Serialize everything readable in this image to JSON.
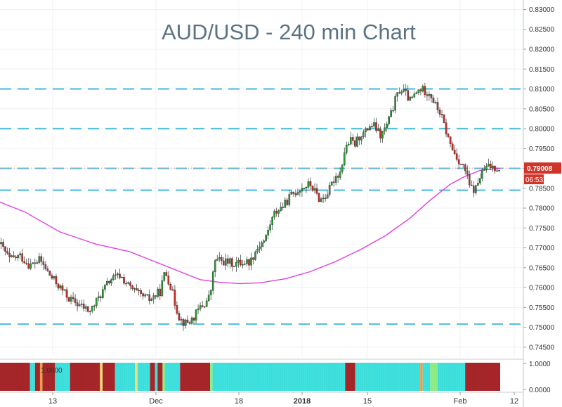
{
  "chart_data": {
    "type": "candlestick",
    "title": "AUD/USD - 240 min Chart",
    "symbol": "AUD/USD",
    "timeframe": "240 min",
    "ylim": [
      0.7425,
      0.8315
    ],
    "y_ticks": [
      "0.83000",
      "0.82500",
      "0.82000",
      "0.81500",
      "0.81000",
      "0.80500",
      "0.80000",
      "0.79500",
      "0.79000",
      "0.78500",
      "0.78000",
      "0.77500",
      "0.77000",
      "0.76500",
      "0.76000",
      "0.75500",
      "0.75000",
      "0.74500"
    ],
    "x_tick_labels": [
      {
        "label": "13",
        "bold": false
      },
      {
        "label": "Dec",
        "bold": false
      },
      {
        "label": "18",
        "bold": false
      },
      {
        "label": "2018",
        "bold": true
      },
      {
        "label": "15",
        "bold": false
      },
      {
        "label": "Feb",
        "bold": false
      },
      {
        "label": "12",
        "bold": false
      }
    ],
    "horizontal_levels": [
      0.81,
      0.8,
      0.79,
      0.7845,
      0.7508
    ],
    "current_price": {
      "value": 0.79008,
      "label": "0.79008",
      "countdown": "06:53"
    },
    "price_path": [
      [
        0,
        0.771
      ],
      [
        0.02,
        0.767
      ],
      [
        0.04,
        0.768
      ],
      [
        0.06,
        0.7655
      ],
      [
        0.08,
        0.767
      ],
      [
        0.1,
        0.763
      ],
      [
        0.12,
        0.76
      ],
      [
        0.14,
        0.757
      ],
      [
        0.16,
        0.7555
      ],
      [
        0.18,
        0.754
      ],
      [
        0.2,
        0.758
      ],
      [
        0.22,
        0.762
      ],
      [
        0.24,
        0.763
      ],
      [
        0.26,
        0.76
      ],
      [
        0.28,
        0.758
      ],
      [
        0.3,
        0.757
      ],
      [
        0.32,
        0.759
      ],
      [
        0.33,
        0.764
      ],
      [
        0.34,
        0.761
      ],
      [
        0.35,
        0.756
      ],
      [
        0.36,
        0.752
      ],
      [
        0.37,
        0.751
      ],
      [
        0.38,
        0.7515
      ],
      [
        0.39,
        0.753
      ],
      [
        0.4,
        0.755
      ],
      [
        0.41,
        0.756
      ],
      [
        0.42,
        0.758
      ],
      [
        0.43,
        0.767
      ],
      [
        0.45,
        0.7665
      ],
      [
        0.47,
        0.766
      ],
      [
        0.49,
        0.7665
      ],
      [
        0.5,
        0.7665
      ],
      [
        0.51,
        0.769
      ],
      [
        0.52,
        0.771
      ],
      [
        0.53,
        0.772
      ],
      [
        0.54,
        0.776
      ],
      [
        0.55,
        0.779
      ],
      [
        0.56,
        0.78
      ],
      [
        0.57,
        0.781
      ],
      [
        0.58,
        0.783
      ],
      [
        0.59,
        0.784
      ],
      [
        0.6,
        0.785
      ],
      [
        0.61,
        0.7855
      ],
      [
        0.62,
        0.786
      ],
      [
        0.63,
        0.784
      ],
      [
        0.64,
        0.782
      ],
      [
        0.65,
        0.783
      ],
      [
        0.66,
        0.785
      ],
      [
        0.67,
        0.788
      ],
      [
        0.68,
        0.789
      ],
      [
        0.69,
        0.795
      ],
      [
        0.7,
        0.797
      ],
      [
        0.71,
        0.796
      ],
      [
        0.72,
        0.7985
      ],
      [
        0.73,
        0.799
      ],
      [
        0.74,
        0.801
      ],
      [
        0.75,
        0.8005
      ],
      [
        0.76,
        0.798
      ],
      [
        0.77,
        0.8
      ],
      [
        0.78,
        0.803
      ],
      [
        0.79,
        0.807
      ],
      [
        0.8,
        0.81
      ],
      [
        0.81,
        0.809
      ],
      [
        0.82,
        0.807
      ],
      [
        0.83,
        0.8085
      ],
      [
        0.84,
        0.81
      ],
      [
        0.85,
        0.8095
      ],
      [
        0.86,
        0.809
      ],
      [
        0.87,
        0.806
      ],
      [
        0.88,
        0.804
      ],
      [
        0.89,
        0.8
      ],
      [
        0.9,
        0.796
      ],
      [
        0.91,
        0.7935
      ],
      [
        0.92,
        0.7915
      ],
      [
        0.93,
        0.7895
      ],
      [
        0.94,
        0.785
      ],
      [
        0.95,
        0.7845
      ],
      [
        0.96,
        0.788
      ],
      [
        0.97,
        0.79
      ],
      [
        0.98,
        0.7905
      ],
      [
        1.0,
        0.7901
      ]
    ],
    "moving_average": [
      [
        -0.02,
        0.7825
      ],
      [
        0.05,
        0.779
      ],
      [
        0.12,
        0.774
      ],
      [
        0.19,
        0.771
      ],
      [
        0.26,
        0.769
      ],
      [
        0.31,
        0.7665
      ],
      [
        0.36,
        0.764
      ],
      [
        0.4,
        0.762
      ],
      [
        0.44,
        0.7613
      ],
      [
        0.48,
        0.761
      ],
      [
        0.52,
        0.7612
      ],
      [
        0.57,
        0.7622
      ],
      [
        0.62,
        0.764
      ],
      [
        0.67,
        0.7665
      ],
      [
        0.72,
        0.7695
      ],
      [
        0.77,
        0.773
      ],
      [
        0.82,
        0.7775
      ],
      [
        0.86,
        0.782
      ],
      [
        0.9,
        0.786
      ],
      [
        0.93,
        0.788
      ],
      [
        0.96,
        0.7895
      ],
      [
        1.0,
        0.79
      ]
    ],
    "indicator": {
      "label": "1.0000",
      "ylim_labels": [
        "1.0000",
        "0.0000"
      ],
      "colors": {
        "red": "#a8262a",
        "cyan": "#3fe3e0",
        "yellow": "#f6e27a",
        "green": "#8ff08a",
        "orange": "#f0a050"
      },
      "segments": [
        [
          "red",
          0,
          0.06
        ],
        [
          "cyan",
          0.06,
          0.07
        ],
        [
          "red",
          0.07,
          0.08
        ],
        [
          "orange",
          0.08,
          0.085
        ],
        [
          "red",
          0.085,
          0.11
        ],
        [
          "cyan",
          0.11,
          0.14
        ],
        [
          "red",
          0.14,
          0.2
        ],
        [
          "yellow",
          0.2,
          0.205
        ],
        [
          "red",
          0.205,
          0.23
        ],
        [
          "cyan",
          0.23,
          0.27
        ],
        [
          "yellow",
          0.27,
          0.275
        ],
        [
          "cyan",
          0.275,
          0.3
        ],
        [
          "red",
          0.3,
          0.31
        ],
        [
          "cyan",
          0.31,
          0.315
        ],
        [
          "red",
          0.315,
          0.325
        ],
        [
          "green",
          0.325,
          0.33
        ],
        [
          "cyan",
          0.33,
          0.36
        ],
        [
          "red",
          0.36,
          0.42
        ],
        [
          "green",
          0.42,
          0.425
        ],
        [
          "cyan",
          0.425,
          0.69
        ],
        [
          "red",
          0.69,
          0.71
        ],
        [
          "cyan",
          0.71,
          0.84
        ],
        [
          "orange",
          0.84,
          0.845
        ],
        [
          "cyan",
          0.845,
          0.86
        ],
        [
          "green",
          0.86,
          0.875
        ],
        [
          "cyan",
          0.875,
          0.93
        ],
        [
          "red",
          0.93,
          1.0
        ]
      ]
    },
    "colors": {
      "up": "#2a9f3a",
      "down": "#c8302c",
      "level": "#5bc0de",
      "ma": "#e040e0",
      "price_box": "#d0352a",
      "title": "#5d7382"
    }
  }
}
